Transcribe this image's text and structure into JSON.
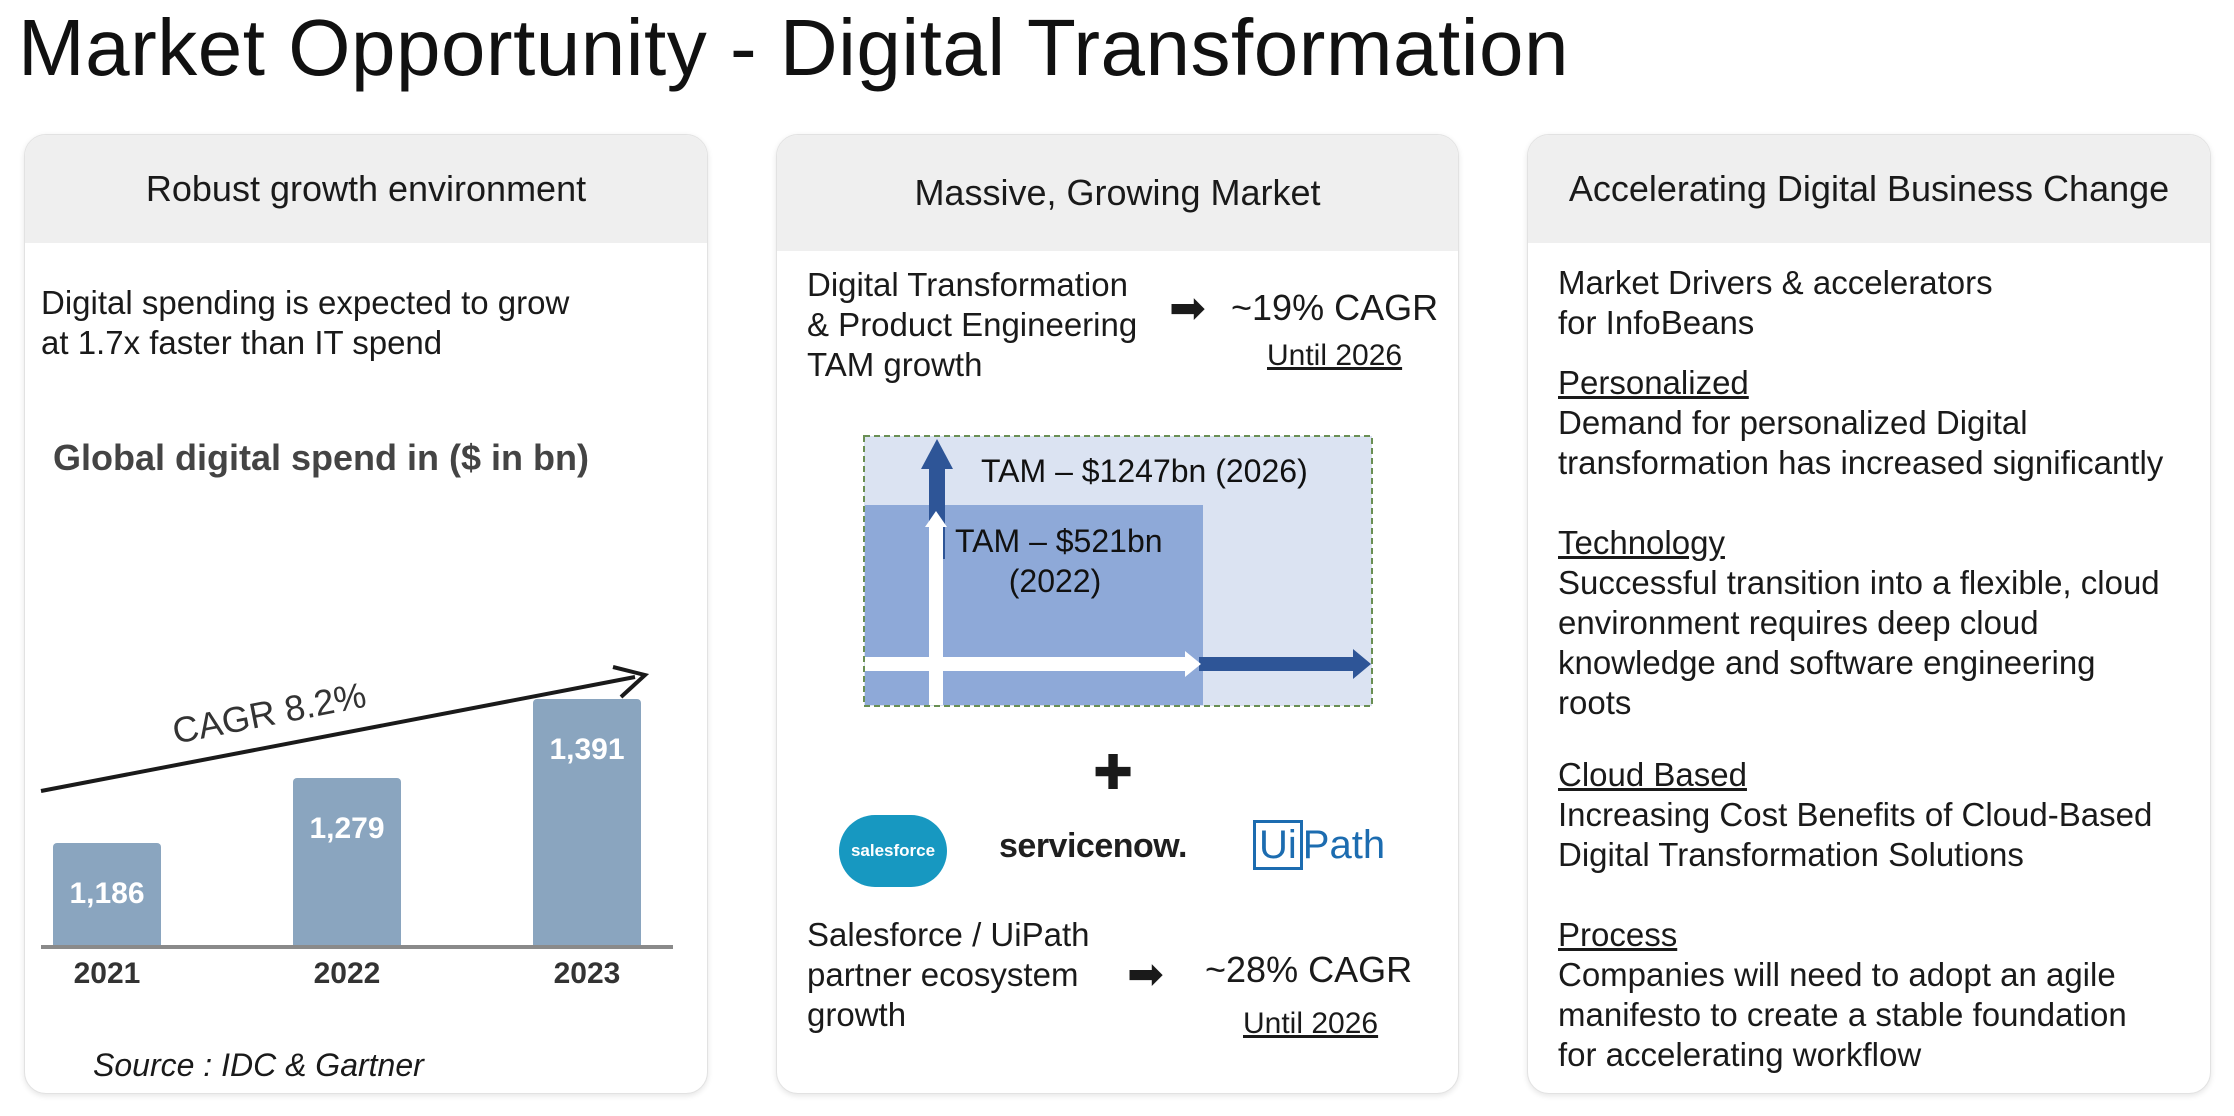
{
  "page": {
    "title": "Market Opportunity - Digital Transformation"
  },
  "panels": [
    {
      "header": "Robust growth environment",
      "intro_lines": [
        "Digital spending is expected to grow",
        "at 1.7x faster than IT spend"
      ],
      "cagr_label": "CAGR 8.2%",
      "source": "Source : IDC & Gartner"
    },
    {
      "header": "Massive, Growing Market",
      "dt_lines": [
        "Digital Transformation",
        "& Product Engineering",
        "TAM growth"
      ],
      "dt_cagr": "~19% CAGR",
      "dt_until": "Until 2026",
      "tam_2026": "TAM – $1247bn (2026)",
      "tam_2022_lines": [
        "TAM – $521bn",
        "(2022)"
      ],
      "plus": "✚",
      "logos": {
        "salesforce": "salesforce",
        "servicenow": "servicenow.",
        "uipath_box": "Ui",
        "uipath_rest": "Path"
      },
      "partner_lines": [
        "Salesforce / UiPath",
        "partner ecosystem",
        "growth"
      ],
      "partner_cagr": "~28% CAGR",
      "partner_until": "Until 2026",
      "arrow_icon": "➡"
    },
    {
      "header": "Accelerating Digital Business Change",
      "intro_lines": [
        "Market Drivers & accelerators",
        "for InfoBeans"
      ],
      "drivers": [
        {
          "heading": "Personalized",
          "lines": [
            "Demand for personalized Digital",
            "transformation has increased significantly"
          ]
        },
        {
          "heading": "Technology",
          "lines": [
            "Successful transition into a flexible, cloud",
            "environment requires deep cloud",
            "knowledge and software engineering",
            "roots"
          ]
        },
        {
          "heading": "Cloud Based",
          "lines": [
            "Increasing Cost Benefits of Cloud-Based",
            "Digital Transformation Solutions"
          ]
        },
        {
          "heading": "Process",
          "lines": [
            "Companies will need to adopt an agile",
            "manifesto to create a stable foundation",
            "for accelerating workflow"
          ]
        }
      ]
    }
  ],
  "chart_data": {
    "type": "bar",
    "title": "Global digital spend in ($ in bn)",
    "categories": [
      "2021",
      "2022",
      "2023"
    ],
    "values": [
      1186,
      1279,
      1391
    ],
    "value_labels": [
      "1,186",
      "1,279",
      "1,391"
    ],
    "annotation": "CAGR 8.2%",
    "bar_color": "#8aa5bf"
  }
}
